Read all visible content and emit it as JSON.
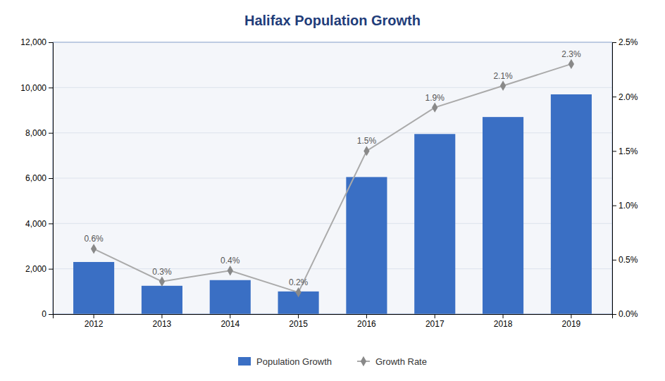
{
  "chart_data": {
    "type": "bar",
    "title": "Halifax Population Growth",
    "categories": [
      "2012",
      "2013",
      "2014",
      "2015",
      "2016",
      "2017",
      "2018",
      "2019"
    ],
    "series": [
      {
        "name": "Population Growth",
        "type": "bar",
        "color": "#3a6fc4",
        "values": [
          2300,
          1250,
          1500,
          1000,
          6050,
          7950,
          8700,
          9700
        ]
      },
      {
        "name": "Growth Rate",
        "type": "line",
        "axis": "y2",
        "color": "#aaaaaa",
        "marker": "diamond",
        "data_labels": true,
        "values": [
          0.006,
          0.003,
          0.004,
          0.002,
          0.015,
          0.019,
          0.021,
          0.023
        ],
        "value_labels": [
          "0.6%",
          "0.3%",
          "0.4%",
          "0.2%",
          "1.5%",
          "1.9%",
          "2.1%",
          "2.3%"
        ]
      }
    ],
    "ylim": [
      0,
      12000
    ],
    "yticks": [
      0,
      {
        "value": 2000,
        "label": "2,000"
      },
      {
        "value": 4000,
        "label": "4,000"
      },
      {
        "value": 6000,
        "label": "6,000"
      },
      {
        "value": 8000,
        "label": "8,000"
      },
      {
        "value": 10000,
        "label": "10,000"
      },
      {
        "value": 12000,
        "label": "12,000"
      }
    ],
    "y2lim": [
      0,
      0.025
    ],
    "y2ticks": [
      {
        "value": 0,
        "label": "0.0%"
      },
      {
        "value": 0.005,
        "label": "0.5%"
      },
      {
        "value": 0.01,
        "label": "1.0%"
      },
      {
        "value": 0.015,
        "label": "1.5%"
      },
      {
        "value": 0.02,
        "label": "2.0%"
      },
      {
        "value": 0.025,
        "label": "2.5%"
      }
    ],
    "grid": true,
    "legend": "bottom"
  }
}
